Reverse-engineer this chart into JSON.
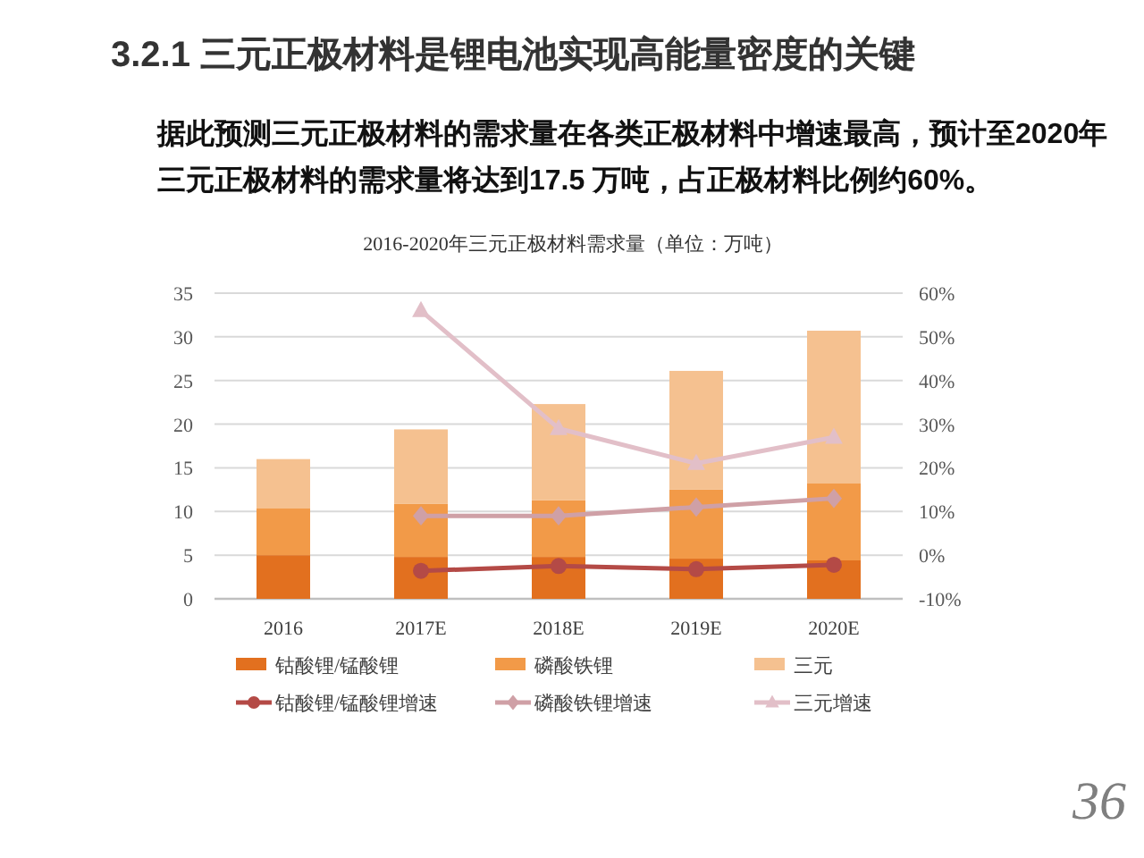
{
  "chart_data": {
    "type": "bar",
    "stacked": true,
    "title": "3.2.1 三元正极材料是锂电池实现高能量密度的关键",
    "subtitle": "2016-2020年三元正极材料需求量（单位：万吨）",
    "annotations": [
      "据此预测三元正极材料的需求量在各类正极材料中增速最高，预计至2020年三元正极材料的需求量将达到17.5 万吨，占正极材料比例约60%。",
      "36"
    ],
    "categories": [
      "2016",
      "2017E",
      "2018E",
      "2019E",
      "2020E"
    ],
    "series": [
      {
        "name": "钴酸锂/锰酸锂",
        "color": "#e2701f",
        "values": [
          5.0,
          4.8,
          4.8,
          4.6,
          4.4
        ]
      },
      {
        "name": "磷酸铁锂",
        "color": "#f29a48",
        "values": [
          5.4,
          6.1,
          6.5,
          7.9,
          8.8
        ]
      },
      {
        "name": "三元",
        "color": "#f5c190",
        "values": [
          5.6,
          8.5,
          11.0,
          13.6,
          17.5
        ]
      },
      {
        "name": "钴酸锂/锰酸锂增速",
        "type": "line",
        "axis": "y2",
        "marker": "circle",
        "color": "#b44a46",
        "values": [
          null,
          -3.6,
          -2.5,
          -3.2,
          -2.2
        ]
      },
      {
        "name": "磷酸铁锂增速",
        "type": "line",
        "axis": "y2",
        "marker": "diamond",
        "color": "#cfa0a6",
        "values": [
          null,
          9,
          9,
          11,
          13
        ]
      },
      {
        "name": "三元增速",
        "type": "line",
        "axis": "y2",
        "marker": "triangle",
        "color": "#e2bfc8",
        "values": [
          null,
          56,
          29,
          21,
          27
        ]
      }
    ],
    "ylim": [
      0,
      35
    ],
    "yticks": [
      0,
      5,
      10,
      15,
      20,
      25,
      30,
      35
    ],
    "y2lim": [
      -10,
      60
    ],
    "y2ticks": [
      {
        "value": -10,
        "label": "-10%"
      },
      {
        "value": 0,
        "label": "0%"
      },
      {
        "value": 10,
        "label": "10%"
      },
      {
        "value": 20,
        "label": "20%"
      },
      {
        "value": 30,
        "label": "30%"
      },
      {
        "value": 40,
        "label": "40%"
      },
      {
        "value": 50,
        "label": "50%"
      },
      {
        "value": 60,
        "label": "60%"
      }
    ],
    "grid": "y",
    "legend": "bottom"
  }
}
